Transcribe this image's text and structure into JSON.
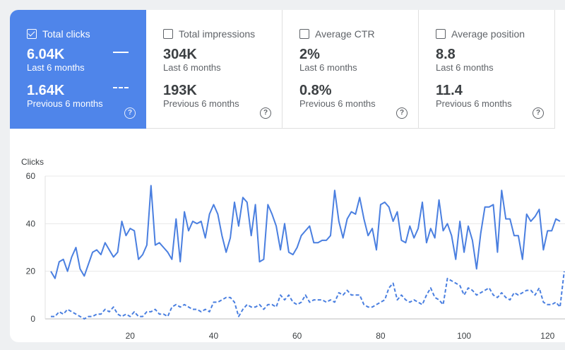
{
  "cards": [
    {
      "label": "Total clicks",
      "value": "6.04K",
      "period": "Last 6 months",
      "prev_value": "1.64K",
      "prev_period": "Previous 6 months",
      "selected": true
    },
    {
      "label": "Total impressions",
      "value": "304K",
      "period": "Last 6 months",
      "prev_value": "193K",
      "prev_period": "Previous 6 months",
      "selected": false
    },
    {
      "label": "Average CTR",
      "value": "2%",
      "period": "Last 6 months",
      "prev_value": "0.8%",
      "prev_period": "Previous 6 months",
      "selected": false
    },
    {
      "label": "Average position",
      "value": "8.8",
      "period": "Last 6 months",
      "prev_value": "11.4",
      "prev_period": "Previous 6 months",
      "selected": false
    }
  ],
  "help_glyph": "?",
  "colors": {
    "accent": "#4f85ea",
    "series": "#4a7fe0"
  },
  "chart_data": {
    "type": "line",
    "ylabel": "Clicks",
    "ylim": [
      0,
      60
    ],
    "yticks": [
      0,
      20,
      40,
      60
    ],
    "xlim": [
      0,
      125
    ],
    "xticks": [
      20,
      40,
      60,
      80,
      100,
      120
    ],
    "grid": true,
    "series": [
      {
        "style": "solid",
        "values": [
          20,
          17,
          24,
          25,
          20,
          26,
          30,
          21,
          18,
          23,
          28,
          29,
          27,
          32,
          29,
          26,
          28,
          41,
          35,
          38,
          37,
          25,
          27,
          31,
          56,
          31,
          32,
          30,
          28,
          25,
          42,
          24,
          45,
          37,
          41,
          40,
          41,
          34,
          44,
          48,
          44,
          35,
          28,
          34,
          49,
          39,
          51,
          49,
          35,
          48,
          24,
          25,
          48,
          44,
          39,
          29,
          40,
          28,
          27,
          30,
          35,
          37,
          39,
          32,
          32,
          33,
          33,
          35,
          54,
          41,
          34,
          42,
          45,
          44,
          51,
          42,
          35,
          38,
          29,
          48,
          49,
          47,
          41,
          45,
          33,
          32,
          39,
          34,
          38,
          49,
          32,
          38,
          34,
          50,
          37,
          40,
          35,
          25,
          41,
          28,
          39,
          33,
          21,
          36,
          47,
          47,
          48,
          28,
          54,
          42,
          42,
          35,
          35,
          25,
          44,
          41,
          43,
          46,
          29,
          37,
          37,
          42,
          41
        ]
      },
      {
        "style": "dashed",
        "values": [
          1,
          1,
          3,
          2,
          4,
          3,
          2,
          1,
          0,
          1,
          1,
          2,
          2,
          4,
          3,
          5,
          2,
          1,
          2,
          1,
          3,
          1,
          1,
          3,
          3,
          4,
          2,
          2,
          1,
          5,
          6,
          5,
          6,
          5,
          4,
          4,
          3,
          4,
          3,
          7,
          7,
          8,
          9,
          9,
          7,
          1,
          4,
          6,
          5,
          5,
          6,
          4,
          6,
          6,
          5,
          10,
          8,
          10,
          7,
          6,
          7,
          10,
          7,
          8,
          8,
          8,
          7,
          8,
          7,
          11,
          10,
          12,
          10,
          10,
          10,
          6,
          5,
          5,
          6,
          7,
          8,
          13,
          15,
          8,
          10,
          8,
          7,
          8,
          7,
          6,
          10,
          13,
          9,
          8,
          6,
          17,
          16,
          15,
          14,
          10,
          13,
          12,
          10,
          11,
          12,
          13,
          10,
          9,
          11,
          9,
          8,
          11,
          10,
          11,
          12,
          12,
          10,
          13,
          7,
          6,
          6,
          7,
          5,
          20
        ]
      }
    ]
  }
}
